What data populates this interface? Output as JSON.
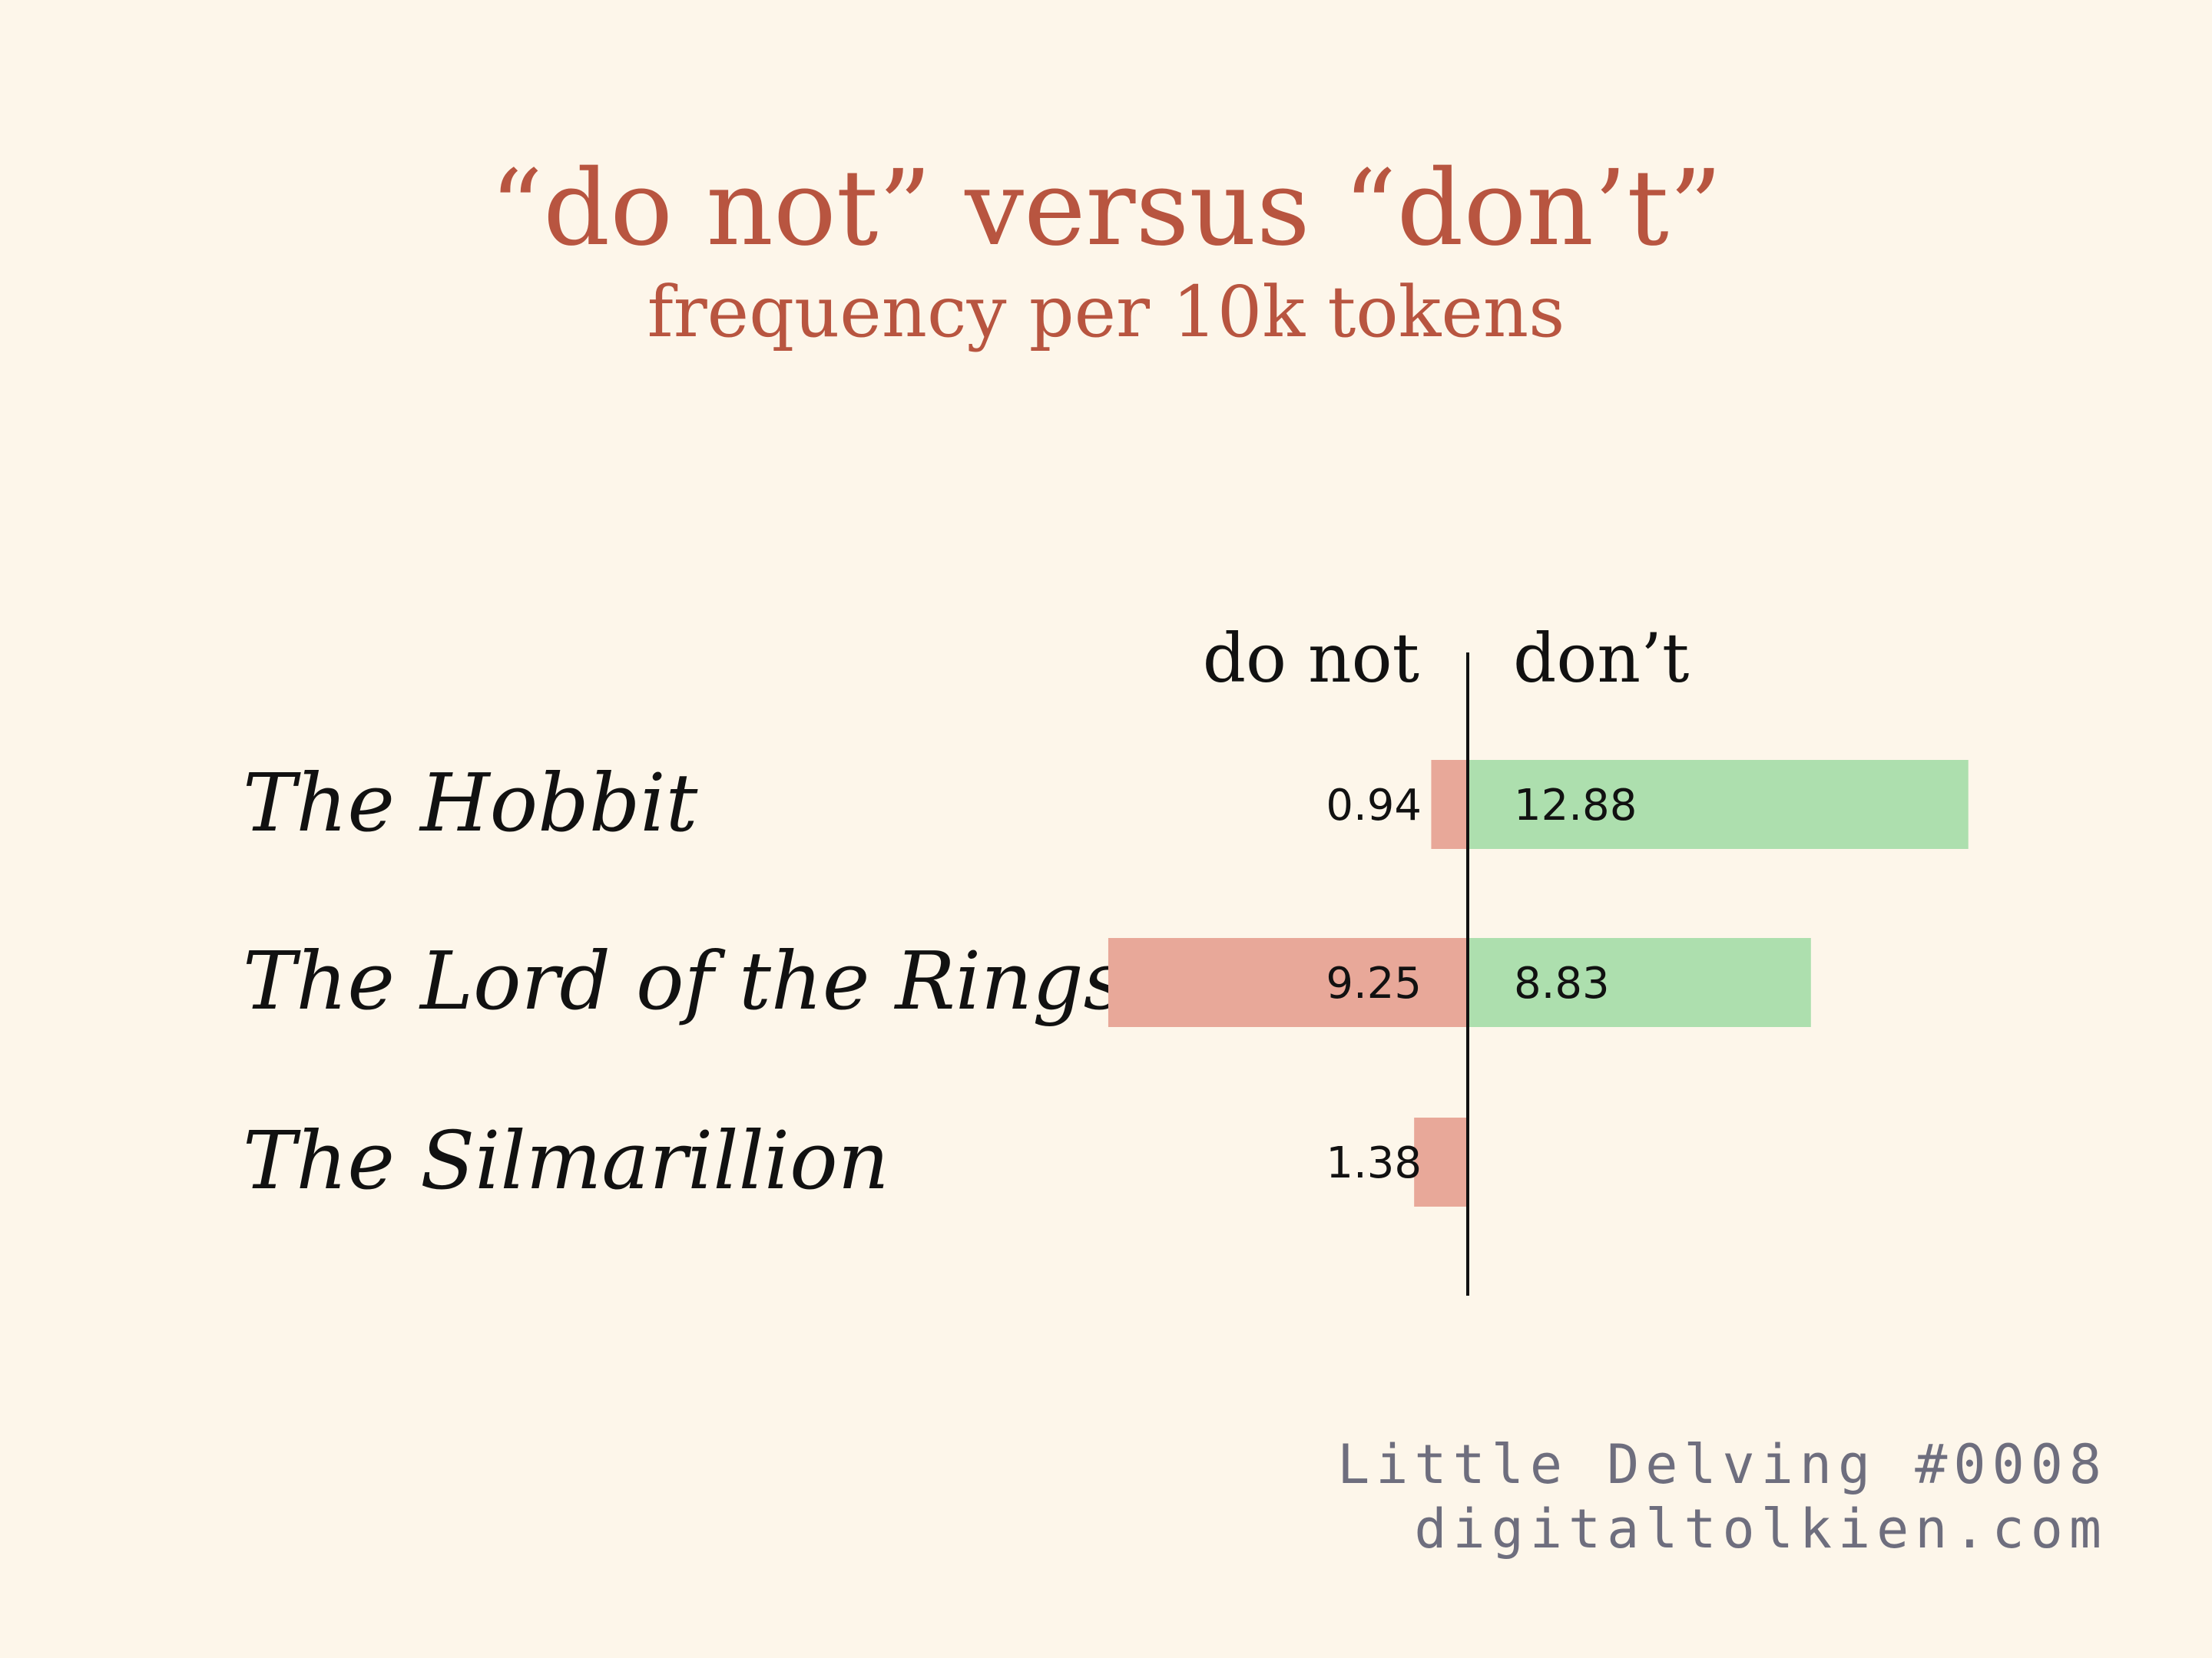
{
  "chart_data": {
    "type": "bar",
    "title": "“do not” versus “don’t”",
    "subtitle": "frequency per 10k tokens",
    "categories": [
      "The Hobbit",
      "The Lord of the Rings",
      "The Silmarillion"
    ],
    "series": [
      {
        "name": "do not",
        "values": [
          0.94,
          9.25,
          1.38
        ],
        "labels": [
          "0.94",
          "9.25",
          "1.38"
        ],
        "color": "#e8a899"
      },
      {
        "name": "don’t",
        "values": [
          12.88,
          8.83,
          0
        ],
        "labels": [
          "12.88",
          "8.83",
          ""
        ],
        "color": "#addfae"
      }
    ],
    "orientation": "diverging-horizontal",
    "grid": false,
    "legend": "column headers above bars"
  },
  "colors": {
    "background": "#fdf6ea",
    "title": "#b85540",
    "text": "#111111",
    "footer": "#6e6e7e",
    "axis": "#111111"
  },
  "footer": {
    "line1": "Little Delving #0008",
    "line2": "digitaltolkien.com"
  }
}
